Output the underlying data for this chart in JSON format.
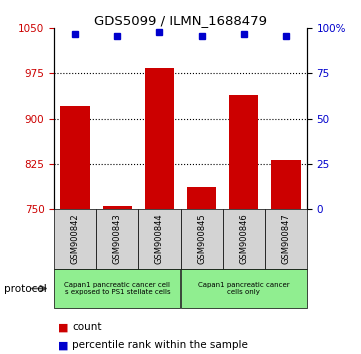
{
  "title": "GDS5099 / ILMN_1688479",
  "categories": [
    "GSM900842",
    "GSM900843",
    "GSM900844",
    "GSM900845",
    "GSM900846",
    "GSM900847"
  ],
  "bar_values": [
    921,
    754,
    984,
    787,
    940,
    832
  ],
  "percentile_values": [
    97,
    96,
    98,
    96,
    97,
    96
  ],
  "ylim_left": [
    750,
    1050
  ],
  "ylim_right": [
    0,
    100
  ],
  "yticks_left": [
    750,
    825,
    900,
    975,
    1050
  ],
  "yticks_right": [
    0,
    25,
    50,
    75,
    100
  ],
  "bar_color": "#cc0000",
  "dot_color": "#0000cc",
  "grid_lines": [
    825,
    900,
    975
  ],
  "protocol_group1_label": "Capan1 pancreatic cancer cells exposed to PS1 stellate cells",
  "protocol_group2_label": "Capan1 pancreatic cancer\ncells only",
  "protocol_label": "protocol",
  "legend_count_label": "count",
  "legend_percentile_label": "percentile rank within the sample",
  "tick_label_color_left": "#cc0000",
  "tick_label_color_right": "#0000cc",
  "group1_color": "#90ee90",
  "group2_color": "#90ee90",
  "xlabel_bg": "#d3d3d3"
}
